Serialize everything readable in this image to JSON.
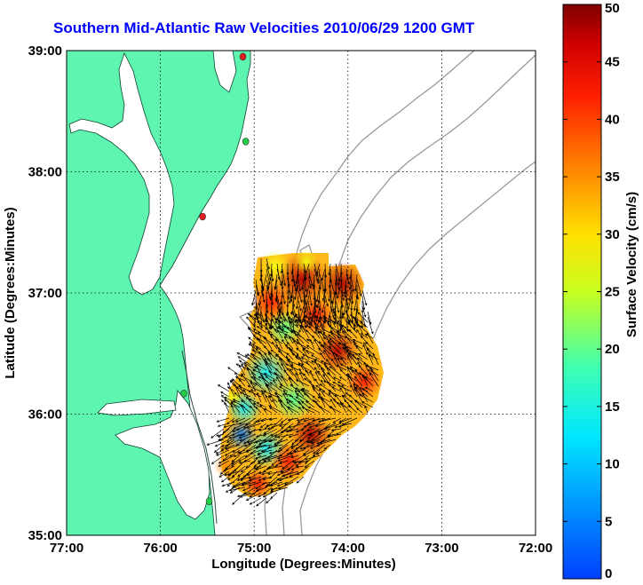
{
  "title": "Southern Mid-Atlantic Raw Velocities 2010/06/29 1200 GMT",
  "map": {
    "x_axis_label": "Longitude (Degrees:Minutes)",
    "y_axis_label": "Latitude (Degrees:Minutes)",
    "lon_range": [
      -77,
      -72
    ],
    "lat_range": [
      35,
      39
    ],
    "x_ticks": [
      {
        "value": -77,
        "label": "77:00"
      },
      {
        "value": -76,
        "label": "76:00"
      },
      {
        "value": -75,
        "label": "75:00"
      },
      {
        "value": -74,
        "label": "74:00"
      },
      {
        "value": -73,
        "label": "73:00"
      },
      {
        "value": -72,
        "label": "72:00"
      }
    ],
    "y_ticks": [
      {
        "value": 39,
        "label": "39:00"
      },
      {
        "value": 38,
        "label": "38:00"
      },
      {
        "value": 37,
        "label": "37:00"
      },
      {
        "value": 36,
        "label": "36:00"
      },
      {
        "value": 35,
        "label": "35:00"
      }
    ],
    "grid": "dotted",
    "land_color": "#5ef5b0",
    "water_color": "#ffffff",
    "bathymetry_color": "#999999",
    "arrow_color": "#000000",
    "stations": [
      {
        "lon": -75.12,
        "lat": 38.95,
        "color": "#e02020"
      },
      {
        "lon": -75.09,
        "lat": 38.25,
        "color": "#22cc44"
      },
      {
        "lon": -75.55,
        "lat": 37.63,
        "color": "#e02020"
      },
      {
        "lon": -75.75,
        "lat": 36.17,
        "color": "#22cc44"
      },
      {
        "lon": -75.48,
        "lat": 35.28,
        "color": "#22cc44"
      }
    ]
  },
  "colorbar": {
    "label": "Surface Velocity (cm/s)",
    "min": 0,
    "max": 50,
    "ticks": [
      {
        "value": 0,
        "label": "0"
      },
      {
        "value": 5,
        "label": "5"
      },
      {
        "value": 10,
        "label": "10"
      },
      {
        "value": 15,
        "label": "15"
      },
      {
        "value": 20,
        "label": "20"
      },
      {
        "value": 25,
        "label": "25"
      },
      {
        "value": 30,
        "label": "30"
      },
      {
        "value": 35,
        "label": "35"
      },
      {
        "value": 40,
        "label": "40"
      },
      {
        "value": 45,
        "label": "45"
      },
      {
        "value": 50,
        "label": "50"
      }
    ]
  }
}
